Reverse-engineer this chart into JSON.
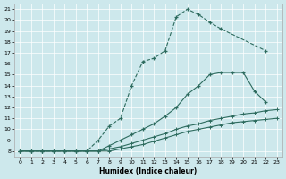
{
  "bg_color": "#cde8ec",
  "grid_color": "#ffffff",
  "line_color": "#2d6b5e",
  "xlim": [
    -0.5,
    23.5
  ],
  "ylim": [
    7.5,
    21.5
  ],
  "xticks": [
    0,
    1,
    2,
    3,
    4,
    5,
    6,
    7,
    8,
    9,
    10,
    11,
    12,
    13,
    14,
    15,
    16,
    17,
    18,
    19,
    20,
    21,
    22,
    23
  ],
  "yticks": [
    8,
    9,
    10,
    11,
    12,
    13,
    14,
    15,
    16,
    17,
    18,
    19,
    20,
    21
  ],
  "xlabel": "Humidex (Indice chaleur)",
  "c1x": [
    0,
    1,
    2,
    3,
    4,
    5,
    6,
    7,
    8,
    9,
    10,
    11,
    12,
    13,
    14,
    15,
    16,
    17,
    18,
    22
  ],
  "c1y": [
    8,
    8,
    8,
    8,
    8,
    8,
    8,
    9.0,
    10.3,
    11.0,
    14.0,
    16.2,
    16.5,
    17.2,
    20.3,
    21.0,
    20.5,
    19.8,
    19.2,
    17.2
  ],
  "c2x": [
    0,
    1,
    2,
    3,
    4,
    5,
    6,
    7,
    8,
    9,
    10,
    11,
    12,
    13,
    14,
    15,
    16,
    17,
    18,
    19,
    20,
    21,
    22
  ],
  "c2y": [
    8,
    8,
    8,
    8,
    8,
    8,
    8,
    8,
    8.5,
    9.0,
    9.5,
    10.0,
    10.5,
    11.2,
    12.0,
    13.2,
    14.0,
    15.0,
    15.2,
    15.2,
    15.2,
    13.5,
    12.5
  ],
  "c3x": [
    0,
    1,
    2,
    3,
    4,
    5,
    6,
    7,
    8,
    9,
    10,
    11,
    12,
    13,
    14,
    15,
    16,
    17,
    18,
    19,
    20,
    21,
    22,
    23
  ],
  "c3y": [
    8,
    8,
    8,
    8,
    8,
    8,
    8,
    8,
    8.2,
    8.4,
    8.7,
    9.0,
    9.3,
    9.6,
    10.0,
    10.3,
    10.5,
    10.8,
    11.0,
    11.2,
    11.4,
    11.5,
    11.7,
    11.8
  ],
  "c4x": [
    0,
    1,
    2,
    3,
    4,
    5,
    6,
    7,
    8,
    9,
    10,
    11,
    12,
    13,
    14,
    15,
    16,
    17,
    18,
    19,
    20,
    21,
    22,
    23
  ],
  "c4y": [
    8,
    8,
    8,
    8,
    8,
    8,
    8,
    8,
    8,
    8.2,
    8.4,
    8.6,
    8.9,
    9.2,
    9.5,
    9.8,
    10.0,
    10.2,
    10.4,
    10.6,
    10.7,
    10.8,
    10.9,
    11.0
  ]
}
